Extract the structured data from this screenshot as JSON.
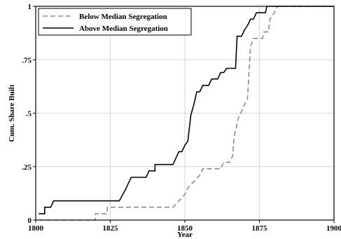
{
  "chart_data": {
    "type": "line",
    "xlabel": "Year",
    "ylabel": "Cum. Share Built",
    "xlim": [
      1800,
      1900
    ],
    "ylim": [
      0,
      1
    ],
    "x_ticks": [
      1800,
      1825,
      1850,
      1875,
      1900
    ],
    "x_tick_labels": [
      "1800",
      "1825",
      "1850",
      "1875",
      "1900"
    ],
    "y_ticks": [
      0,
      0.25,
      0.5,
      0.75,
      1
    ],
    "y_tick_labels": [
      "0",
      ".25",
      ".5",
      ".75",
      "1"
    ],
    "grid": true,
    "legend_position": "top-left",
    "series": [
      {
        "name": "Below Median Segregation",
        "color": "#8c8c8c",
        "dash": "dashed",
        "points": [
          [
            1801,
            0
          ],
          [
            1820,
            0
          ],
          [
            1820,
            0.03
          ],
          [
            1824,
            0.03
          ],
          [
            1824,
            0.06
          ],
          [
            1846,
            0.06
          ],
          [
            1848,
            0.09
          ],
          [
            1850,
            0.12
          ],
          [
            1851,
            0.15
          ],
          [
            1853,
            0.18
          ],
          [
            1855,
            0.21
          ],
          [
            1856,
            0.24
          ],
          [
            1862,
            0.24
          ],
          [
            1863,
            0.27
          ],
          [
            1865,
            0.27
          ],
          [
            1866,
            0.3
          ],
          [
            1866.5,
            0.39
          ],
          [
            1867,
            0.42
          ],
          [
            1867.5,
            0.45
          ],
          [
            1868,
            0.48
          ],
          [
            1869,
            0.51
          ],
          [
            1870,
            0.54
          ],
          [
            1871,
            0.57
          ],
          [
            1872,
            0.81
          ],
          [
            1873,
            0.85
          ],
          [
            1876,
            0.85
          ],
          [
            1876.5,
            0.88
          ],
          [
            1878,
            0.88
          ],
          [
            1878.5,
            0.94
          ],
          [
            1880,
            0.97
          ],
          [
            1881,
            1
          ],
          [
            1900,
            1
          ]
        ]
      },
      {
        "name": "Above Median Segregation",
        "color": "#000000",
        "dash": "solid",
        "points": [
          [
            1801,
            0.03
          ],
          [
            1803,
            0.03
          ],
          [
            1803,
            0.06
          ],
          [
            1805,
            0.06
          ],
          [
            1806,
            0.09
          ],
          [
            1828,
            0.09
          ],
          [
            1830,
            0.14
          ],
          [
            1832,
            0.2
          ],
          [
            1837,
            0.2
          ],
          [
            1838,
            0.23
          ],
          [
            1840,
            0.23
          ],
          [
            1840,
            0.26
          ],
          [
            1846,
            0.26
          ],
          [
            1847,
            0.29
          ],
          [
            1848,
            0.32
          ],
          [
            1849,
            0.32
          ],
          [
            1850,
            0.35
          ],
          [
            1851,
            0.37
          ],
          [
            1852,
            0.49
          ],
          [
            1853,
            0.54
          ],
          [
            1854,
            0.6
          ],
          [
            1855,
            0.6
          ],
          [
            1856,
            0.63
          ],
          [
            1857,
            0.63
          ],
          [
            1858,
            0.63
          ],
          [
            1859,
            0.66
          ],
          [
            1861,
            0.66
          ],
          [
            1862,
            0.69
          ],
          [
            1863,
            0.69
          ],
          [
            1864,
            0.71
          ],
          [
            1866,
            0.71
          ],
          [
            1867,
            0.71
          ],
          [
            1867.5,
            0.86
          ],
          [
            1869,
            0.86
          ],
          [
            1870,
            0.89
          ],
          [
            1871,
            0.91
          ],
          [
            1872,
            0.94
          ],
          [
            1873,
            0.94
          ],
          [
            1874,
            0.97
          ],
          [
            1876,
            0.97
          ],
          [
            1877,
            0.97
          ],
          [
            1877.5,
            1
          ],
          [
            1900,
            1
          ]
        ]
      }
    ]
  }
}
